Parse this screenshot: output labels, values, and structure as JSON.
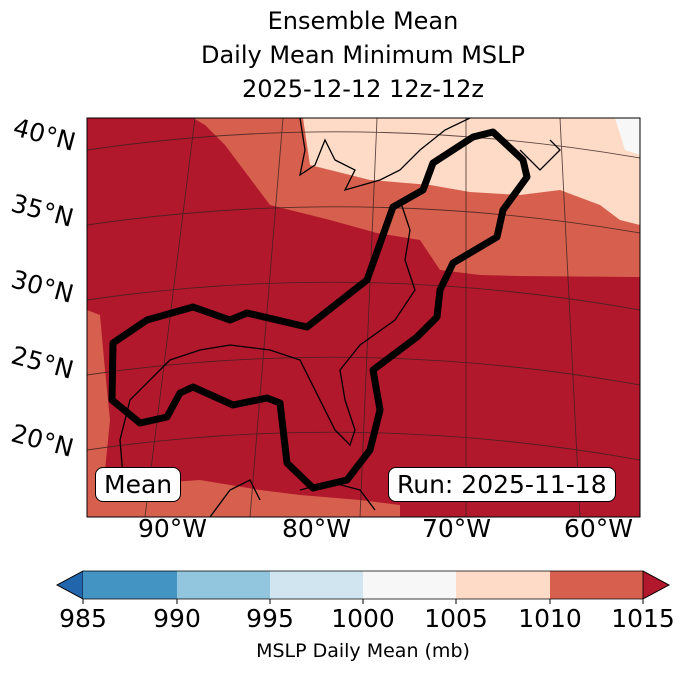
{
  "title": {
    "line1": "Ensemble Mean",
    "line2": "Daily Mean Minimum MSLP",
    "line3": "2025-12-12 12z-12z"
  },
  "map": {
    "lat_labels": [
      "40°N",
      "35°N",
      "30°N",
      "25°N",
      "20°N"
    ],
    "lon_labels": [
      "90°W",
      "80°W",
      "70°W",
      "60°W"
    ],
    "left_box": "Mean",
    "right_box": "Run: 2025-11-18"
  },
  "colorbar": {
    "ticks": [
      "985",
      "990",
      "995",
      "1000",
      "1005",
      "1010",
      "1015"
    ],
    "label": "MSLP Daily Mean (mb)",
    "colors": {
      "under": "#2166ac",
      "985": "#4393c3",
      "990": "#92c5de",
      "995": "#d1e5f0",
      "1000": "#f7f7f7",
      "1005": "#fddbc7",
      "1010": "#d6604d",
      "over": "#b2182b"
    }
  }
}
